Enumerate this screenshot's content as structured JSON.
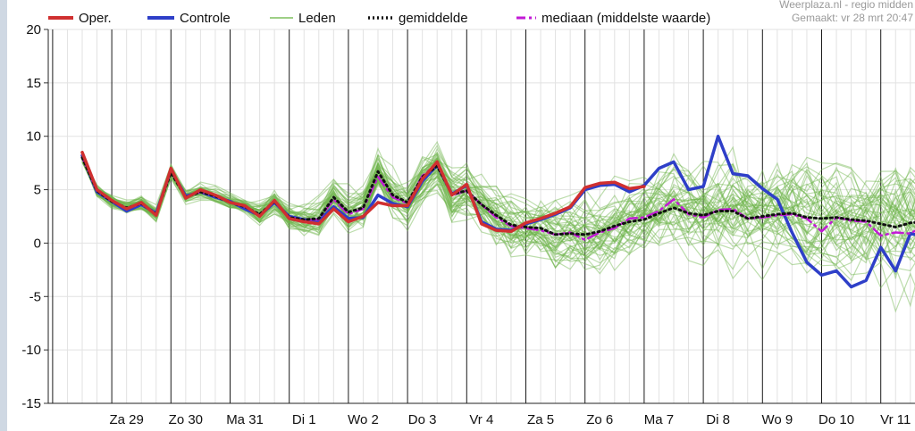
{
  "chart_data": {
    "type": "line",
    "ylim": [
      -15,
      20
    ],
    "yticks": [
      20,
      15,
      10,
      5,
      0,
      -5,
      -10,
      -15
    ],
    "x_ticks": [
      "Za 29",
      "Zo 30",
      "Ma 31",
      "Di 1",
      "Wo 2",
      "Do 3",
      "Vr 4",
      "Za 5",
      "Zo 6",
      "Ma 7",
      "Di 8",
      "Wo 9",
      "Do 10",
      "Vr 11"
    ],
    "x_range_days": [
      0,
      14.5
    ],
    "grid": true,
    "legend": [
      {
        "name": "Oper.",
        "color": "#d03030",
        "style": "solid-thick"
      },
      {
        "name": "Controle",
        "color": "#2e3fc8",
        "style": "solid-thick"
      },
      {
        "name": "Leden",
        "color": "#7fbf5f",
        "style": "solid-thin"
      },
      {
        "name": "gemiddelde",
        "color": "#111111",
        "style": "dotted"
      },
      {
        "name": "mediaan (middelste waarde)",
        "color": "#c21ad6",
        "style": "dashdot"
      }
    ],
    "meta": {
      "source": "Weerplaza.nl - regio midden",
      "made": "Gemaakt: vr 28 mrt 20:47"
    },
    "series": [
      {
        "name": "Oper.",
        "color": "#d03030",
        "x": [
          0,
          0.25,
          0.5,
          0.75,
          1,
          1.25,
          1.5,
          1.75,
          2,
          2.25,
          2.5,
          2.75,
          3,
          3.25,
          3.5,
          3.75,
          4,
          4.25,
          4.5,
          4.75,
          5,
          5.25,
          5.5,
          5.75,
          6,
          6.25,
          6.5,
          6.75,
          7,
          7.25,
          7.5,
          7.75,
          8,
          8.25,
          8.5,
          8.75,
          9,
          9.25,
          9.5
        ],
        "values": [
          8.5,
          5.0,
          4.0,
          3.2,
          3.8,
          2.6,
          7.0,
          4.2,
          5.0,
          4.5,
          3.8,
          3.5,
          2.5,
          4.0,
          2.3,
          2.0,
          1.8,
          3.2,
          2.0,
          2.5,
          3.8,
          3.5,
          3.5,
          6.0,
          7.6,
          4.5,
          5.5,
          1.8,
          1.2,
          1.1,
          1.9,
          2.3,
          2.8,
          3.4,
          5.2,
          5.6,
          5.7,
          5.1,
          5.3
        ]
      },
      {
        "name": "Controle",
        "color": "#2e3fc8",
        "x": [
          0,
          0.25,
          0.5,
          0.75,
          1,
          1.25,
          1.5,
          1.75,
          2,
          2.25,
          2.5,
          2.75,
          3,
          3.25,
          3.5,
          3.75,
          4,
          4.25,
          4.5,
          4.75,
          5,
          5.25,
          5.5,
          5.75,
          6,
          6.25,
          6.5,
          6.75,
          7,
          7.25,
          7.5,
          7.75,
          8,
          8.25,
          8.5,
          8.75,
          9,
          9.25,
          9.5,
          9.75,
          10,
          10.25,
          10.5,
          10.75,
          11,
          11.25,
          11.5,
          11.75,
          12,
          12.25,
          12.5,
          12.75,
          13,
          13.25,
          13.5,
          13.75,
          14,
          14.25,
          14.5
        ],
        "values": [
          8.2,
          4.8,
          3.9,
          3.0,
          3.6,
          2.8,
          6.8,
          4.4,
          4.8,
          4.3,
          3.9,
          3.2,
          2.6,
          3.8,
          2.5,
          2.2,
          2.1,
          3.4,
          2.3,
          2.4,
          4.5,
          3.7,
          3.4,
          5.8,
          7.3,
          4.6,
          5.4,
          2.0,
          1.3,
          1.2,
          1.8,
          2.2,
          2.7,
          3.3,
          5.0,
          5.4,
          5.5,
          4.8,
          5.4,
          7.0,
          7.6,
          5.0,
          5.3,
          10.0,
          6.5,
          6.3,
          5.1,
          4.1,
          1.0,
          -1.8,
          -3.0,
          -2.6,
          -4.1,
          -3.5,
          -0.4,
          -2.6,
          0.9,
          0.6,
          3.2
        ]
      },
      {
        "name": "gemiddelde",
        "color": "#111111",
        "x": [
          0,
          0.25,
          0.5,
          0.75,
          1,
          1.25,
          1.5,
          1.75,
          2,
          2.25,
          2.5,
          2.75,
          3,
          3.25,
          3.5,
          3.75,
          4,
          4.25,
          4.5,
          4.75,
          5,
          5.25,
          5.5,
          5.75,
          6,
          6.25,
          6.5,
          6.75,
          7,
          7.25,
          7.5,
          7.75,
          8,
          8.25,
          8.5,
          8.75,
          9,
          9.25,
          9.5,
          9.75,
          10,
          10.25,
          10.5,
          10.75,
          11,
          11.25,
          11.5,
          11.75,
          12,
          12.25,
          12.5,
          12.75,
          13,
          13.25,
          13.5,
          13.75,
          14,
          14.25,
          14.5
        ],
        "values": [
          8.0,
          4.9,
          3.9,
          3.3,
          3.7,
          2.7,
          6.6,
          4.3,
          4.8,
          4.4,
          3.8,
          3.4,
          2.7,
          3.9,
          2.4,
          2.2,
          2.3,
          4.3,
          2.9,
          3.3,
          6.7,
          4.5,
          3.8,
          6.2,
          7.2,
          4.6,
          4.9,
          3.6,
          2.6,
          1.7,
          1.5,
          1.4,
          0.8,
          0.9,
          0.8,
          1.1,
          1.6,
          2.0,
          2.2,
          2.8,
          3.3,
          2.8,
          2.6,
          3.0,
          3.0,
          2.3,
          2.5,
          2.7,
          2.8,
          2.4,
          2.3,
          2.4,
          2.2,
          2.1,
          1.8,
          1.5,
          1.9,
          2.0,
          2.3
        ]
      },
      {
        "name": "mediaan (middelste waarde)",
        "color": "#c21ad6",
        "x": [
          0,
          0.25,
          0.5,
          0.75,
          1,
          1.25,
          1.5,
          1.75,
          2,
          2.25,
          2.5,
          2.75,
          3,
          3.25,
          3.5,
          3.75,
          4,
          4.25,
          4.5,
          4.75,
          5,
          5.25,
          5.5,
          5.75,
          6,
          6.25,
          6.5,
          6.75,
          7,
          7.25,
          7.5,
          7.75,
          8,
          8.25,
          8.5,
          8.75,
          9,
          9.25,
          9.5,
          9.75,
          10,
          10.25,
          10.5,
          10.75,
          11,
          11.25,
          11.5,
          11.75,
          12,
          12.25,
          12.5,
          12.75,
          13,
          13.25,
          13.5,
          13.75,
          14,
          14.25,
          14.5
        ],
        "values": [
          8.0,
          4.9,
          3.9,
          3.2,
          3.7,
          2.7,
          6.7,
          4.3,
          4.8,
          4.4,
          3.8,
          3.4,
          2.6,
          3.9,
          2.4,
          2.2,
          2.2,
          4.1,
          2.7,
          3.2,
          6.2,
          4.3,
          3.7,
          6.3,
          7.4,
          4.5,
          4.9,
          3.6,
          2.4,
          1.6,
          1.4,
          1.2,
          0.8,
          1.0,
          0.3,
          1.0,
          1.4,
          2.3,
          2.4,
          3.0,
          4.1,
          2.7,
          2.4,
          3.1,
          3.2,
          2.3,
          2.4,
          2.6,
          2.7,
          2.3,
          1.1,
          2.4,
          2.1,
          2.0,
          0.7,
          1.0,
          0.9,
          1.7,
          2.5
        ]
      }
    ]
  }
}
